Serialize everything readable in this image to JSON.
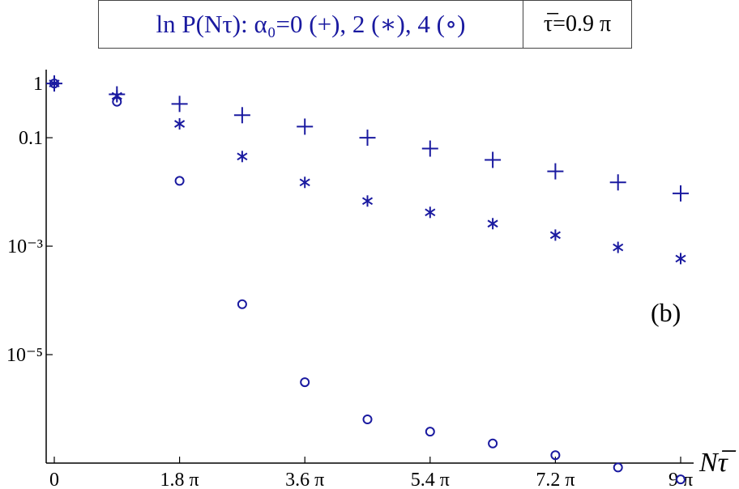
{
  "title": "ln P(Nτ): α₀=0 (+), 2 (∗), 4 (∘)",
  "tau_label": "τ̅=0.9 π",
  "panel_label": "(b)",
  "chart_data": {
    "type": "scatter",
    "x_label": "Nτ̅",
    "y_scale": "log",
    "xlim": [
      0,
      9
    ],
    "ylim": [
      1e-07,
      1.8
    ],
    "x_ticks": [
      0,
      1.8,
      3.6,
      5.4,
      7.2,
      9
    ],
    "x_tick_labels": [
      "0",
      "1.8 π",
      "3.6 π",
      "5.4 π",
      "7.2 π",
      "9 π"
    ],
    "y_ticks": [
      1,
      0.1,
      0.001,
      1e-05
    ],
    "y_tick_labels": [
      "1",
      "0.1",
      "10⁻³",
      "10⁻⁵"
    ],
    "x": [
      0,
      0.9,
      1.8,
      2.7,
      3.6,
      4.5,
      5.4,
      6.3,
      7.2,
      8.1,
      9.0
    ],
    "series": [
      {
        "marker": "plus",
        "values": [
          1.0,
          0.63,
          0.42,
          0.26,
          0.16,
          0.1,
          0.063,
          0.039,
          0.024,
          0.015,
          0.0094
        ]
      },
      {
        "marker": "asterisk",
        "values": [
          1.0,
          0.59,
          0.18,
          0.045,
          0.015,
          0.0068,
          0.0042,
          0.0026,
          0.0016,
          0.00095,
          0.00059
        ]
      },
      {
        "marker": "circle",
        "values": [
          1.0,
          0.46,
          0.016,
          8.5e-05,
          3.1e-06,
          6.4e-07,
          3.8e-07,
          2.3e-07,
          1.4e-07,
          8.3e-08,
          5e-08
        ]
      }
    ]
  },
  "colors": {
    "marker": "#1a1aa0",
    "axis": "#000000"
  }
}
